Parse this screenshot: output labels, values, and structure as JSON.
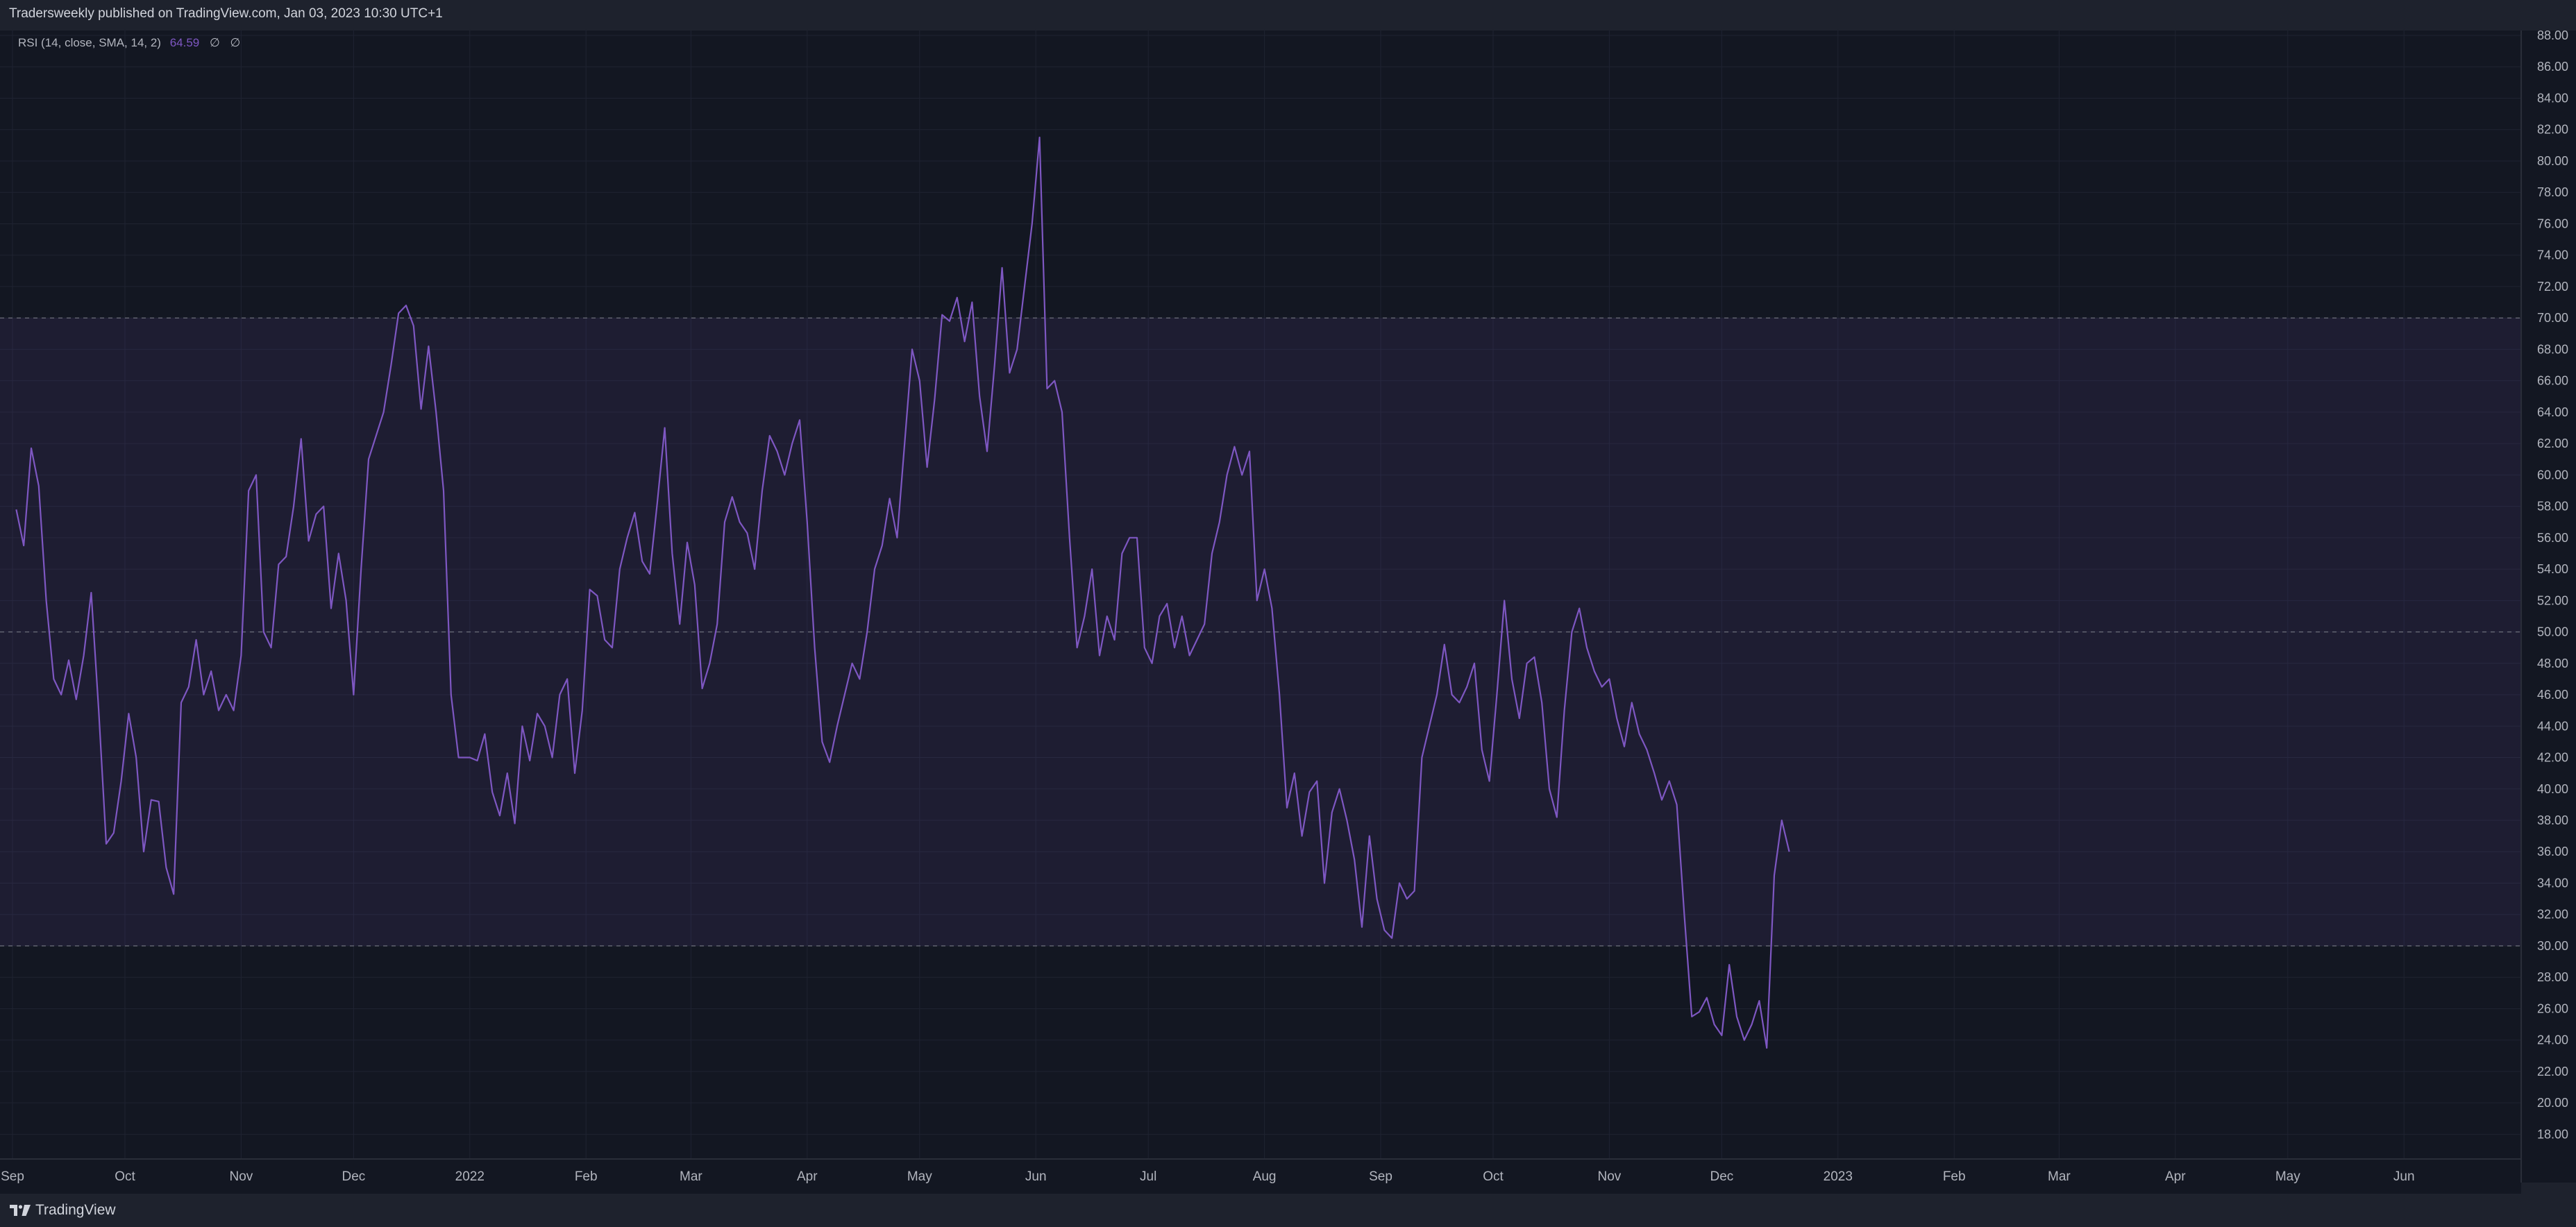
{
  "header": {
    "publisher": "Tradersweekly published on TradingView.com, Jan 03, 2023 10:30 UTC+1"
  },
  "legend": {
    "indicator": "RSI (14, close, SMA, 14, 2)",
    "value": "64.59",
    "na1": "∅",
    "na2": "∅"
  },
  "footer": {
    "brand": "TradingView"
  },
  "colors": {
    "background": "#131722",
    "frame": "#1e222d",
    "rsi_line": "#7e57c2",
    "band_fill": "#7e57c2",
    "grid": "#1f2331",
    "text": "#b2b5be"
  },
  "chart_data": {
    "type": "line",
    "title": "RSI (14, close, SMA, 14, 2)",
    "xlabel": "",
    "ylabel": "",
    "ylim": [
      17.0,
      88.5
    ],
    "grid": true,
    "yticks": [
      "88.00",
      "86.00",
      "84.00",
      "82.00",
      "80.00",
      "78.00",
      "76.00",
      "74.00",
      "72.00",
      "70.00",
      "68.00",
      "66.00",
      "64.00",
      "62.00",
      "60.00",
      "58.00",
      "56.00",
      "54.00",
      "52.00",
      "50.00",
      "48.00",
      "46.00",
      "44.00",
      "42.00",
      "40.00",
      "38.00",
      "36.00",
      "34.00",
      "32.00",
      "30.00",
      "28.00",
      "26.00",
      "24.00",
      "22.00",
      "20.00",
      "18.00"
    ],
    "xticks": [
      {
        "label": "Sep",
        "date": "2021-09-01"
      },
      {
        "label": "Oct",
        "date": "2021-10-01"
      },
      {
        "label": "Nov",
        "date": "2021-11-01"
      },
      {
        "label": "Dec",
        "date": "2021-12-01"
      },
      {
        "label": "2022",
        "date": "2022-01-01"
      },
      {
        "label": "Feb",
        "date": "2022-02-01"
      },
      {
        "label": "Mar",
        "date": "2022-03-01"
      },
      {
        "label": "Apr",
        "date": "2022-04-01"
      },
      {
        "label": "May",
        "date": "2022-05-01"
      },
      {
        "label": "Jun",
        "date": "2022-06-01"
      },
      {
        "label": "Jul",
        "date": "2022-07-01"
      },
      {
        "label": "Aug",
        "date": "2022-08-01"
      },
      {
        "label": "Sep",
        "date": "2022-09-01"
      },
      {
        "label": "Oct",
        "date": "2022-10-01"
      },
      {
        "label": "Nov",
        "date": "2022-11-01"
      },
      {
        "label": "Dec",
        "date": "2022-12-01"
      },
      {
        "label": "2023",
        "date": "2023-01-01"
      },
      {
        "label": "Feb",
        "date": "2023-02-01"
      },
      {
        "label": "Mar",
        "date": "2023-03-01"
      },
      {
        "label": "Apr",
        "date": "2023-04-01"
      },
      {
        "label": "May",
        "date": "2023-05-01"
      },
      {
        "label": "Jun",
        "date": "2023-06-01"
      }
    ],
    "bands": {
      "upper": 70,
      "middle": 50,
      "lower": 30
    },
    "series": [
      {
        "indicator": "RSI",
        "points": [
          [
            "2021-09-02",
            57.8
          ],
          [
            "2021-09-04",
            55.5
          ],
          [
            "2021-09-06",
            61.7
          ],
          [
            "2021-09-08",
            59.3
          ],
          [
            "2021-09-10",
            52.0
          ],
          [
            "2021-09-12",
            47.0
          ],
          [
            "2021-09-14",
            46.0
          ],
          [
            "2021-09-16",
            48.2
          ],
          [
            "2021-09-18",
            45.7
          ],
          [
            "2021-09-20",
            48.5
          ],
          [
            "2021-09-22",
            52.5
          ],
          [
            "2021-09-24",
            45.0
          ],
          [
            "2021-09-26",
            36.5
          ],
          [
            "2021-09-28",
            37.2
          ],
          [
            "2021-09-30",
            40.5
          ],
          [
            "2021-10-02",
            44.8
          ],
          [
            "2021-10-04",
            42.0
          ],
          [
            "2021-10-06",
            36.0
          ],
          [
            "2021-10-08",
            39.3
          ],
          [
            "2021-10-10",
            39.2
          ],
          [
            "2021-10-12",
            35.0
          ],
          [
            "2021-10-14",
            33.3
          ],
          [
            "2021-10-16",
            45.5
          ],
          [
            "2021-10-18",
            46.5
          ],
          [
            "2021-10-20",
            49.5
          ],
          [
            "2021-10-22",
            46.0
          ],
          [
            "2021-10-24",
            47.5
          ],
          [
            "2021-10-26",
            45.0
          ],
          [
            "2021-10-28",
            46.0
          ],
          [
            "2021-10-30",
            45.0
          ],
          [
            "2021-11-01",
            48.5
          ],
          [
            "2021-11-03",
            59.0
          ],
          [
            "2021-11-05",
            60.0
          ],
          [
            "2021-11-07",
            50.0
          ],
          [
            "2021-11-09",
            49.0
          ],
          [
            "2021-11-11",
            54.3
          ],
          [
            "2021-11-13",
            54.8
          ],
          [
            "2021-11-15",
            58.0
          ],
          [
            "2021-11-17",
            62.3
          ],
          [
            "2021-11-19",
            55.8
          ],
          [
            "2021-11-21",
            57.5
          ],
          [
            "2021-11-23",
            58.0
          ],
          [
            "2021-11-25",
            51.5
          ],
          [
            "2021-11-27",
            55.0
          ],
          [
            "2021-11-29",
            52.0
          ],
          [
            "2021-12-01",
            46.0
          ],
          [
            "2021-12-03",
            54.0
          ],
          [
            "2021-12-05",
            61.0
          ],
          [
            "2021-12-07",
            62.5
          ],
          [
            "2021-12-09",
            64.0
          ],
          [
            "2021-12-11",
            67.0
          ],
          [
            "2021-12-13",
            70.3
          ],
          [
            "2021-12-15",
            70.8
          ],
          [
            "2021-12-17",
            69.5
          ],
          [
            "2021-12-19",
            64.2
          ],
          [
            "2021-12-21",
            68.2
          ],
          [
            "2021-12-23",
            64.0
          ],
          [
            "2021-12-25",
            59.0
          ],
          [
            "2021-12-27",
            46.0
          ],
          [
            "2021-12-29",
            42.0
          ],
          [
            "2022-01-01",
            42.0
          ],
          [
            "2022-01-03",
            41.8
          ],
          [
            "2022-01-05",
            43.5
          ],
          [
            "2022-01-07",
            39.8
          ],
          [
            "2022-01-09",
            38.3
          ],
          [
            "2022-01-11",
            41.0
          ],
          [
            "2022-01-13",
            37.8
          ],
          [
            "2022-01-15",
            44.0
          ],
          [
            "2022-01-17",
            41.8
          ],
          [
            "2022-01-19",
            44.8
          ],
          [
            "2022-01-21",
            44.0
          ],
          [
            "2022-01-23",
            42.0
          ],
          [
            "2022-01-25",
            46.0
          ],
          [
            "2022-01-27",
            47.0
          ],
          [
            "2022-01-29",
            41.0
          ],
          [
            "2022-01-31",
            45.0
          ],
          [
            "2022-02-02",
            52.7
          ],
          [
            "2022-02-04",
            52.3
          ],
          [
            "2022-02-06",
            49.5
          ],
          [
            "2022-02-08",
            49.0
          ],
          [
            "2022-02-10",
            54.0
          ],
          [
            "2022-02-12",
            56.0
          ],
          [
            "2022-02-14",
            57.6
          ],
          [
            "2022-02-16",
            54.5
          ],
          [
            "2022-02-18",
            53.7
          ],
          [
            "2022-02-20",
            58.2
          ],
          [
            "2022-02-22",
            63.0
          ],
          [
            "2022-02-24",
            55.0
          ],
          [
            "2022-02-26",
            50.5
          ],
          [
            "2022-02-28",
            55.7
          ],
          [
            "2022-03-02",
            53.0
          ],
          [
            "2022-03-04",
            46.4
          ],
          [
            "2022-03-06",
            48.0
          ],
          [
            "2022-03-08",
            50.5
          ],
          [
            "2022-03-10",
            57.0
          ],
          [
            "2022-03-12",
            58.6
          ],
          [
            "2022-03-14",
            57.0
          ],
          [
            "2022-03-16",
            56.3
          ],
          [
            "2022-03-18",
            54.0
          ],
          [
            "2022-03-20",
            59.0
          ],
          [
            "2022-03-22",
            62.5
          ],
          [
            "2022-03-24",
            61.5
          ],
          [
            "2022-03-26",
            60.0
          ],
          [
            "2022-03-28",
            62.0
          ],
          [
            "2022-03-30",
            63.5
          ],
          [
            "2022-04-01",
            57.0
          ],
          [
            "2022-04-03",
            49.0
          ],
          [
            "2022-04-05",
            43.0
          ],
          [
            "2022-04-07",
            41.7
          ],
          [
            "2022-04-09",
            44.0
          ],
          [
            "2022-04-11",
            46.0
          ],
          [
            "2022-04-13",
            48.0
          ],
          [
            "2022-04-15",
            47.0
          ],
          [
            "2022-04-17",
            50.0
          ],
          [
            "2022-04-19",
            54.0
          ],
          [
            "2022-04-21",
            55.5
          ],
          [
            "2022-04-23",
            58.5
          ],
          [
            "2022-04-25",
            56.0
          ],
          [
            "2022-04-27",
            62.0
          ],
          [
            "2022-04-29",
            68.0
          ],
          [
            "2022-05-01",
            66.0
          ],
          [
            "2022-05-03",
            60.5
          ],
          [
            "2022-05-05",
            64.8
          ],
          [
            "2022-05-07",
            70.2
          ],
          [
            "2022-05-09",
            69.8
          ],
          [
            "2022-05-11",
            71.3
          ],
          [
            "2022-05-13",
            68.5
          ],
          [
            "2022-05-15",
            71.0
          ],
          [
            "2022-05-17",
            65.0
          ],
          [
            "2022-05-19",
            61.5
          ],
          [
            "2022-05-21",
            67.0
          ],
          [
            "2022-05-23",
            73.2
          ],
          [
            "2022-05-25",
            66.5
          ],
          [
            "2022-05-27",
            68.0
          ],
          [
            "2022-05-29",
            72.0
          ],
          [
            "2022-05-31",
            76.0
          ],
          [
            "2022-06-02",
            81.5
          ],
          [
            "2022-06-04",
            65.5
          ],
          [
            "2022-06-06",
            66.0
          ],
          [
            "2022-06-08",
            64.0
          ],
          [
            "2022-06-10",
            56.0
          ],
          [
            "2022-06-12",
            49.0
          ],
          [
            "2022-06-14",
            51.0
          ],
          [
            "2022-06-16",
            54.0
          ],
          [
            "2022-06-18",
            48.5
          ],
          [
            "2022-06-20",
            51.0
          ],
          [
            "2022-06-22",
            49.5
          ],
          [
            "2022-06-24",
            55.0
          ],
          [
            "2022-06-26",
            56.0
          ],
          [
            "2022-06-28",
            56.0
          ],
          [
            "2022-06-30",
            49.0
          ],
          [
            "2022-07-02",
            48.0
          ],
          [
            "2022-07-04",
            51.0
          ],
          [
            "2022-07-06",
            51.8
          ],
          [
            "2022-07-08",
            49.0
          ],
          [
            "2022-07-10",
            51.0
          ],
          [
            "2022-07-12",
            48.5
          ],
          [
            "2022-07-14",
            49.5
          ],
          [
            "2022-07-16",
            50.5
          ],
          [
            "2022-07-18",
            55.0
          ],
          [
            "2022-07-20",
            57.0
          ],
          [
            "2022-07-22",
            60.0
          ],
          [
            "2022-07-24",
            61.8
          ],
          [
            "2022-07-26",
            60.0
          ],
          [
            "2022-07-28",
            61.5
          ],
          [
            "2022-07-30",
            52.0
          ],
          [
            "2022-08-01",
            54.0
          ],
          [
            "2022-08-03",
            51.5
          ],
          [
            "2022-08-05",
            46.0
          ],
          [
            "2022-08-07",
            38.8
          ],
          [
            "2022-08-09",
            41.0
          ],
          [
            "2022-08-11",
            37.0
          ],
          [
            "2022-08-13",
            39.8
          ],
          [
            "2022-08-15",
            40.5
          ],
          [
            "2022-08-17",
            34.0
          ],
          [
            "2022-08-19",
            38.5
          ],
          [
            "2022-08-21",
            40.0
          ],
          [
            "2022-08-23",
            38.0
          ],
          [
            "2022-08-25",
            35.5
          ],
          [
            "2022-08-27",
            31.2
          ],
          [
            "2022-08-29",
            37.0
          ],
          [
            "2022-08-31",
            33.0
          ],
          [
            "2022-09-02",
            31.0
          ],
          [
            "2022-09-04",
            30.5
          ],
          [
            "2022-09-06",
            34.0
          ],
          [
            "2022-09-08",
            33.0
          ],
          [
            "2022-09-10",
            33.5
          ],
          [
            "2022-09-12",
            42.0
          ],
          [
            "2022-09-14",
            44.0
          ],
          [
            "2022-09-16",
            46.0
          ],
          [
            "2022-09-18",
            49.2
          ],
          [
            "2022-09-20",
            46.0
          ],
          [
            "2022-09-22",
            45.5
          ],
          [
            "2022-09-24",
            46.5
          ],
          [
            "2022-09-26",
            48.0
          ],
          [
            "2022-09-28",
            42.5
          ],
          [
            "2022-09-30",
            40.5
          ],
          [
            "2022-10-02",
            46.0
          ],
          [
            "2022-10-04",
            52.0
          ],
          [
            "2022-10-06",
            47.0
          ],
          [
            "2022-10-08",
            44.5
          ],
          [
            "2022-10-10",
            48.0
          ],
          [
            "2022-10-12",
            48.4
          ],
          [
            "2022-10-14",
            45.5
          ],
          [
            "2022-10-16",
            40.0
          ],
          [
            "2022-10-18",
            38.2
          ],
          [
            "2022-10-20",
            45.0
          ],
          [
            "2022-10-22",
            50.0
          ],
          [
            "2022-10-24",
            51.5
          ],
          [
            "2022-10-26",
            49.0
          ],
          [
            "2022-10-28",
            47.5
          ],
          [
            "2022-10-30",
            46.5
          ],
          [
            "2022-11-01",
            47.0
          ],
          [
            "2022-11-03",
            44.5
          ],
          [
            "2022-11-05",
            42.7
          ],
          [
            "2022-11-07",
            45.5
          ],
          [
            "2022-11-09",
            43.5
          ],
          [
            "2022-11-11",
            42.5
          ],
          [
            "2022-11-13",
            41.0
          ],
          [
            "2022-11-15",
            39.3
          ],
          [
            "2022-11-17",
            40.5
          ],
          [
            "2022-11-19",
            39.0
          ],
          [
            "2022-11-21",
            32.0
          ],
          [
            "2022-11-23",
            25.5
          ],
          [
            "2022-11-25",
            25.8
          ],
          [
            "2022-11-27",
            26.7
          ],
          [
            "2022-11-29",
            25.0
          ],
          [
            "2022-12-01",
            24.3
          ],
          [
            "2022-12-03",
            28.8
          ],
          [
            "2022-12-05",
            25.5
          ],
          [
            "2022-12-07",
            24.0
          ],
          [
            "2022-12-09",
            25.0
          ],
          [
            "2022-12-11",
            26.5
          ],
          [
            "2022-12-13",
            23.5
          ],
          [
            "2022-12-15",
            34.5
          ],
          [
            "2022-12-17",
            38.0
          ],
          [
            "2022-12-19",
            36.0
          ]
        ]
      }
    ]
  }
}
